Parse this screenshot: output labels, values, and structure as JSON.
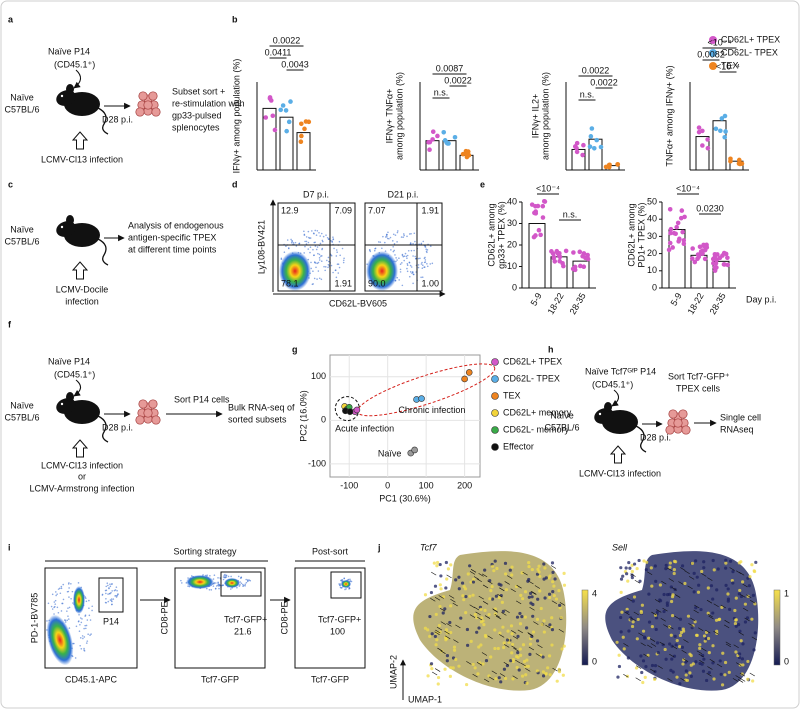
{
  "letters": [
    "a",
    "b",
    "c",
    "d",
    "e",
    "f",
    "g",
    "h",
    "i",
    "j"
  ],
  "a": {
    "donor": "Naïve P14",
    "donor_marker": "(CD45.1⁺)",
    "host": "Naïve",
    "host_strain": "C57BL/6",
    "timepoint": "D28 p.i.",
    "step": [
      "Subset sort +",
      "re-stimulation with",
      "gp33-pulsed",
      "splenocytes"
    ],
    "infection": "LCMV-Cl13 infection"
  },
  "b_legend": [
    {
      "name": "CD62L+ TPEX",
      "color": "#d257c8"
    },
    {
      "name": "CD62L- TPEX",
      "color": "#5aaee6"
    },
    {
      "name": "TEX",
      "color": "#ee8420"
    }
  ],
  "c": {
    "host": "Naïve",
    "host_strain": "C57BL/6",
    "step": [
      "Analysis of endogenous",
      "antigen-specific TPEX",
      "at different time points"
    ],
    "infection": [
      "LCMV-Docile",
      "infection"
    ]
  },
  "d": {
    "titles": [
      "D7 p.i.",
      "D21 p.i."
    ],
    "ylabel": "Ly108-BV421",
    "xlabel": "CD62L-BV605",
    "quadrants": [
      [
        "12.9",
        "7.09",
        "78.1",
        "1.91"
      ],
      [
        "7.07",
        "1.91",
        "90.0",
        "1.00"
      ]
    ]
  },
  "f": {
    "donor": "Naïve P14",
    "donor_marker": "(CD45.1⁺)",
    "host": "Naïve",
    "host_strain": "C57BL/6",
    "timepoint": "D28 p.i.",
    "step1": "Sort P14 cells",
    "step2": [
      "Bulk RNA-seq of",
      "sorted subsets"
    ],
    "infection": "LCMV-Cl13 infection",
    "or": "or",
    "infection2": "LCMV-Armstrong infection"
  },
  "h": {
    "donor": "Naïve Tcf7ᴳᶠᴾ P14",
    "donor_marker": "(CD45.1⁺)",
    "host": "Naïve",
    "host_strain": "C57BL/6",
    "timepoint": "D28 p.i.",
    "step1": [
      "Sort Tcf7-GFP⁺",
      "TPEX cells"
    ],
    "step2": [
      "Single cell",
      "RNAseq"
    ],
    "infection": "LCMV-Cl13 infection"
  },
  "i": {
    "title1": "Sorting strategy",
    "title2": "Post-sort",
    "plot1": {
      "ylabel": "PD-1-BV785",
      "xlabel": "CD45.1-APC",
      "gate": "P14"
    },
    "plot2": {
      "ylabel": "CD8-PE",
      "xlabel": "Tcf7-GFP",
      "gate": "Tcf7-GFP+",
      "value": "21.6"
    },
    "plot3": {
      "ylabel": "CD8-PE",
      "xlabel": "Tcf7-GFP",
      "gate": "Tcf7-GFP+",
      "value": "100"
    }
  },
  "j": {
    "titles": [
      "Tcf7",
      "Sell"
    ],
    "colorbars": [
      [
        "4",
        "0"
      ],
      [
        "1",
        "0"
      ]
    ],
    "ylabel": "UMAP-2",
    "xlabel": "UMAP-1"
  },
  "chart_data": [
    {
      "type": "bar",
      "ylabel": "IFNγ+ among population (%)",
      "values": [
        28,
        24,
        17
      ],
      "colors": [
        "#d257c8",
        "#5aaee6",
        "#ee8420"
      ],
      "ylim": [
        0,
        40
      ],
      "annotations": [
        "0.0022",
        "0.0411",
        "0.0043"
      ]
    },
    {
      "type": "bar",
      "ylabel": [
        "IFNγ+ TNFα+",
        "among population (%)"
      ],
      "values": [
        5,
        5,
        2.5
      ],
      "colors": [
        "#d257c8",
        "#5aaee6",
        "#ee8420"
      ],
      "ylim": [
        0,
        15
      ],
      "annotations": [
        "n.s.",
        "0.0087",
        "0.0022"
      ]
    },
    {
      "type": "bar",
      "ylabel": [
        "IFNγ+ IL2+",
        "among population (%)"
      ],
      "values": [
        2.8,
        4.2,
        0.6
      ],
      "colors": [
        "#d257c8",
        "#5aaee6",
        "#ee8420"
      ],
      "ylim": [
        0,
        12
      ],
      "annotations": [
        "n.s.",
        "0.0022",
        "0.0022"
      ]
    },
    {
      "type": "bar",
      "ylabel": "TNFα+ among IFNγ+ (%)",
      "values": [
        9.5,
        14,
        2.5
      ],
      "colors": [
        "#d257c8",
        "#5aaee6",
        "#ee8420"
      ],
      "ylim": [
        0,
        25
      ],
      "annotations": [
        "<10⁻⁴",
        "0.0082",
        "<10⁻⁴"
      ]
    },
    {
      "type": "bar",
      "ylabel": [
        "CD62L+ among",
        "gp33+ TPEX (%)"
      ],
      "categories": [
        "5-9",
        "18-22",
        "28-35"
      ],
      "values": [
        30,
        14.5,
        12.5
      ],
      "color": "#d257c8",
      "ylim": [
        0,
        40
      ],
      "yticks": [
        0,
        10,
        20,
        30,
        40
      ],
      "annotations": [
        "<10⁻⁴",
        "n.s."
      ]
    },
    {
      "type": "bar",
      "ylabel": [
        "CD62L+ among",
        "PD1+ TPEX (%)"
      ],
      "categories": [
        "5-9",
        "18-22",
        "28-35"
      ],
      "values": [
        34,
        19,
        15.5
      ],
      "color": "#d257c8",
      "ylim": [
        0,
        50
      ],
      "yticks": [
        0,
        10,
        20,
        30,
        40,
        50
      ],
      "annotations": [
        "<10⁻⁴",
        "0.0230"
      ],
      "xlabel": "Day p.i."
    },
    {
      "type": "scatter",
      "xlabel": "PC1 (30.6%)",
      "ylabel": "PC2 (16.0%)",
      "xlim": [
        -150,
        240
      ],
      "ylim": [
        -130,
        150
      ],
      "xticks": [
        -100,
        0,
        100,
        200
      ],
      "yticks": [
        -100,
        0,
        100
      ],
      "series": [
        {
          "name": "CD62L+ TPEX",
          "color": "#d257c8",
          "x": [
            -85,
            -80
          ],
          "y": [
            20,
            24
          ]
        },
        {
          "name": "CD62L- TPEX",
          "color": "#5aaee6",
          "x": [
            75,
            88
          ],
          "y": [
            48,
            50
          ]
        },
        {
          "name": "TEX",
          "color": "#ee8420",
          "x": [
            200,
            212
          ],
          "y": [
            95,
            110
          ]
        },
        {
          "name": "CD62L+ memory",
          "color": "#f2d43a",
          "x": [
            -112
          ],
          "y": [
            32
          ]
        },
        {
          "name": "CD62L- memory",
          "color": "#3aaa48",
          "x": [
            -105,
            -100
          ],
          "y": [
            26,
            30
          ]
        },
        {
          "name": "Effector",
          "color": "#111111",
          "x": [
            -110,
            -98
          ],
          "y": [
            22,
            20
          ]
        }
      ],
      "naive_points": {
        "color": "#9a9a9a",
        "x": [
          60,
          70
        ],
        "y": [
          -75,
          -68
        ]
      },
      "annotations": [
        "Chronic infection",
        "Acute infection",
        "Naïve"
      ]
    }
  ]
}
